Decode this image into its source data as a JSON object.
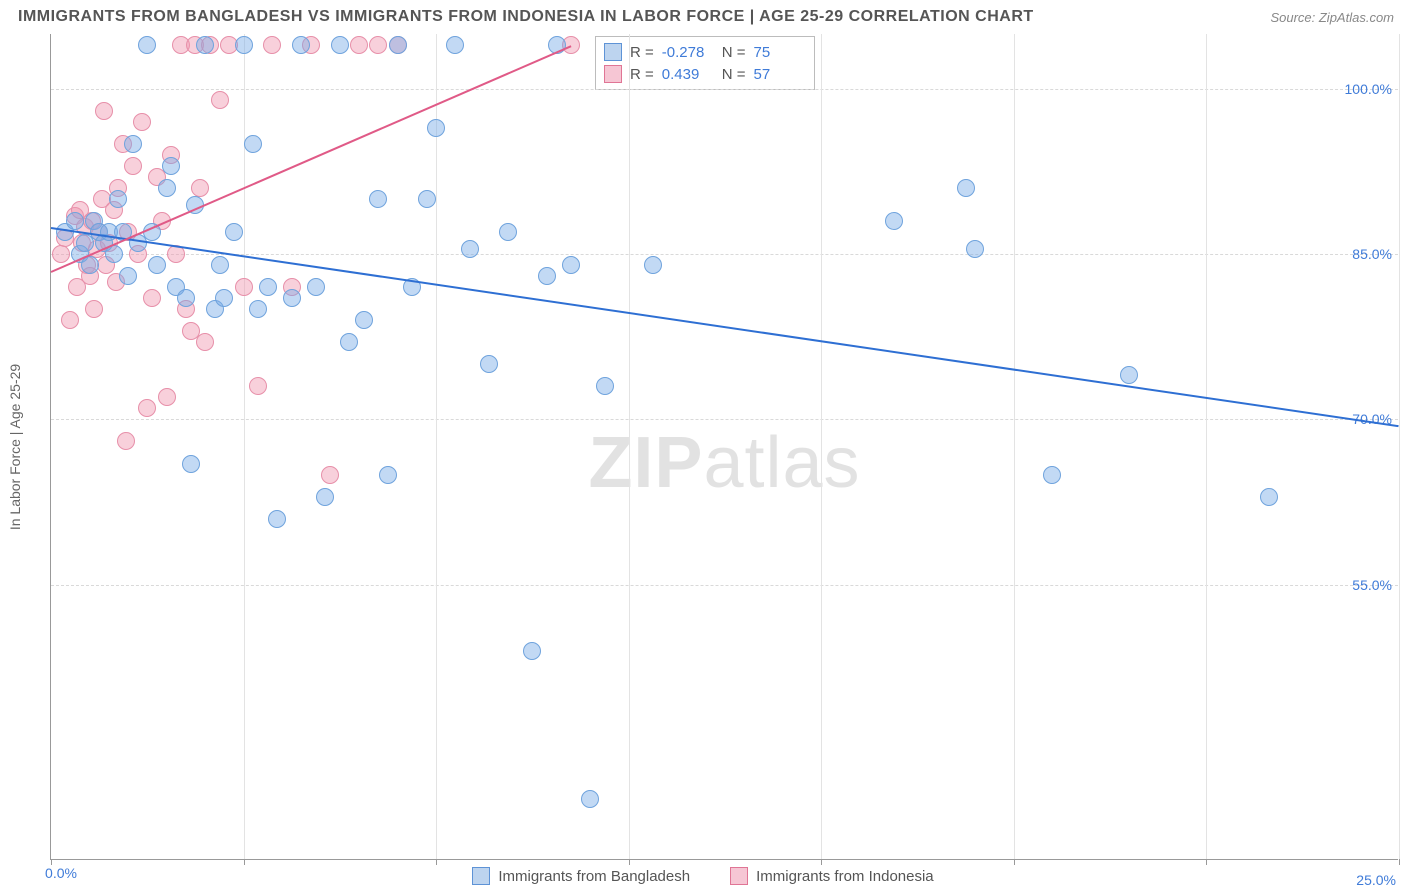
{
  "title": "IMMIGRANTS FROM BANGLADESH VS IMMIGRANTS FROM INDONESIA IN LABOR FORCE | AGE 25-29 CORRELATION CHART",
  "source_label": "Source: ZipAtlas.com",
  "watermark_html": "ZIPatlas",
  "y_axis_label": "In Labor Force | Age 25-29",
  "series_a": {
    "name": "Immigrants from Bangladesh",
    "color_fill": "rgba(120,170,230,0.45)",
    "color_stroke": "#6fa3dd",
    "swatch_fill": "#bdd4ef",
    "swatch_border": "#5e93d6",
    "marker_radius": 9,
    "R_label": "R =",
    "R_value": "-0.278",
    "N_label": "N =",
    "N_value": "75",
    "trend": {
      "x1": 0.0,
      "y1": 87.5,
      "x2": 28.0,
      "y2": 69.5,
      "color": "#2e6fd3",
      "width": 2
    },
    "points": [
      [
        0.3,
        87
      ],
      [
        0.5,
        88
      ],
      [
        0.6,
        85
      ],
      [
        0.7,
        86
      ],
      [
        0.8,
        84
      ],
      [
        0.9,
        88
      ],
      [
        1.0,
        87
      ],
      [
        1.1,
        86
      ],
      [
        1.2,
        87
      ],
      [
        1.3,
        85
      ],
      [
        1.4,
        90
      ],
      [
        1.5,
        87
      ],
      [
        1.6,
        83
      ],
      [
        1.7,
        95
      ],
      [
        1.8,
        86
      ],
      [
        2.0,
        104
      ],
      [
        2.1,
        87
      ],
      [
        2.2,
        84
      ],
      [
        2.4,
        91
      ],
      [
        2.5,
        93
      ],
      [
        2.6,
        82
      ],
      [
        2.8,
        81
      ],
      [
        2.9,
        66
      ],
      [
        3.0,
        89.5
      ],
      [
        3.2,
        104
      ],
      [
        3.4,
        80
      ],
      [
        3.5,
        84
      ],
      [
        3.6,
        81
      ],
      [
        3.8,
        87
      ],
      [
        4.0,
        104
      ],
      [
        4.2,
        95
      ],
      [
        4.3,
        80
      ],
      [
        4.5,
        82
      ],
      [
        4.7,
        61
      ],
      [
        5.0,
        81
      ],
      [
        5.2,
        104
      ],
      [
        5.5,
        82
      ],
      [
        5.7,
        63
      ],
      [
        6.0,
        104
      ],
      [
        6.2,
        77
      ],
      [
        6.5,
        79
      ],
      [
        6.8,
        90
      ],
      [
        7.0,
        65
      ],
      [
        7.2,
        104
      ],
      [
        7.5,
        82
      ],
      [
        7.8,
        90
      ],
      [
        8.0,
        96.5
      ],
      [
        8.4,
        104
      ],
      [
        8.7,
        85.5
      ],
      [
        9.1,
        75
      ],
      [
        9.5,
        87
      ],
      [
        10.0,
        49
      ],
      [
        10.3,
        83
      ],
      [
        10.5,
        104
      ],
      [
        10.8,
        84
      ],
      [
        11.2,
        35.5
      ],
      [
        11.5,
        73
      ],
      [
        12.5,
        84
      ],
      [
        17.5,
        88
      ],
      [
        19.0,
        91
      ],
      [
        19.2,
        85.5
      ],
      [
        20.8,
        65
      ],
      [
        22.4,
        74
      ],
      [
        25.3,
        63
      ]
    ]
  },
  "series_b": {
    "name": "Immigrants from Indonesia",
    "color_fill": "rgba(240,150,175,0.45)",
    "color_stroke": "#e78fa9",
    "swatch_fill": "#f6c6d4",
    "swatch_border": "#e07595",
    "marker_radius": 9,
    "R_label": "R =",
    "R_value": "0.439",
    "N_label": "N =",
    "N_value": "57",
    "trend": {
      "x1": 0.0,
      "y1": 83.5,
      "x2": 10.8,
      "y2": 104.0,
      "color": "#e05a87",
      "width": 2
    },
    "points": [
      [
        0.2,
        85
      ],
      [
        0.3,
        86.5
      ],
      [
        0.4,
        79
      ],
      [
        0.5,
        88.5
      ],
      [
        0.55,
        82
      ],
      [
        0.6,
        89
      ],
      [
        0.65,
        86
      ],
      [
        0.7,
        87.5
      ],
      [
        0.75,
        84
      ],
      [
        0.8,
        83
      ],
      [
        0.85,
        88
      ],
      [
        0.9,
        80
      ],
      [
        0.95,
        85.5
      ],
      [
        1.0,
        87
      ],
      [
        1.05,
        90
      ],
      [
        1.1,
        98
      ],
      [
        1.15,
        84
      ],
      [
        1.2,
        86
      ],
      [
        1.3,
        89
      ],
      [
        1.35,
        82.5
      ],
      [
        1.4,
        91
      ],
      [
        1.5,
        95
      ],
      [
        1.55,
        68
      ],
      [
        1.6,
        87
      ],
      [
        1.7,
        93
      ],
      [
        1.8,
        85
      ],
      [
        1.9,
        97
      ],
      [
        2.0,
        71
      ],
      [
        2.1,
        81
      ],
      [
        2.2,
        92
      ],
      [
        2.3,
        88
      ],
      [
        2.4,
        72
      ],
      [
        2.5,
        94
      ],
      [
        2.6,
        85
      ],
      [
        2.7,
        104
      ],
      [
        2.8,
        80
      ],
      [
        2.9,
        78
      ],
      [
        3.0,
        104
      ],
      [
        3.1,
        91
      ],
      [
        3.2,
        77
      ],
      [
        3.3,
        104
      ],
      [
        3.5,
        99
      ],
      [
        3.7,
        104
      ],
      [
        4.0,
        82
      ],
      [
        4.3,
        73
      ],
      [
        4.6,
        104
      ],
      [
        5.0,
        82
      ],
      [
        5.4,
        104
      ],
      [
        5.8,
        65
      ],
      [
        6.4,
        104
      ],
      [
        6.8,
        104
      ],
      [
        7.2,
        104
      ],
      [
        10.8,
        104
      ]
    ]
  },
  "axes": {
    "xlim": [
      0,
      28
    ],
    "ylim": [
      30,
      105
    ],
    "yticks": [
      {
        "v": 100,
        "label": "100.0%"
      },
      {
        "v": 85,
        "label": "85.0%"
      },
      {
        "v": 70,
        "label": "70.0%"
      },
      {
        "v": 55,
        "label": "55.0%"
      }
    ],
    "xtick_start_label": "0.0%",
    "xtick_marks": [
      0,
      4,
      8,
      12,
      16,
      20,
      24,
      28
    ],
    "far_right_label": "25.0%"
  },
  "colors": {
    "title_text": "#555555",
    "source_text": "#888888",
    "tick_text": "#3f7bd8",
    "axis_text": "#666666",
    "grid_dash": "#d9d9d9",
    "grid_solid": "#e3e3e3",
    "axis_line": "#999999"
  },
  "legend": {
    "a": "Immigrants from Bangladesh",
    "b": "Immigrants from Indonesia"
  }
}
